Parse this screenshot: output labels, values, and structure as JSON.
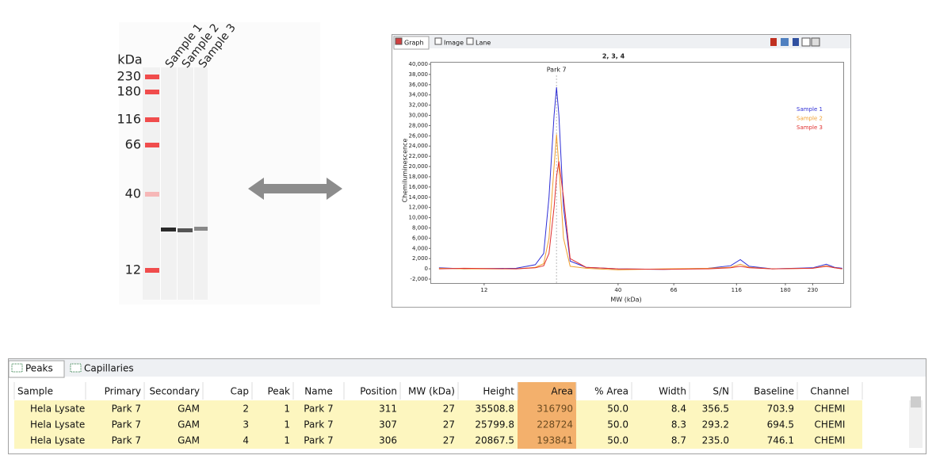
{
  "gel": {
    "unit": "kDa",
    "markers": [
      "230",
      "180",
      "116",
      "66",
      "40",
      "12"
    ],
    "samples": [
      "Sample 1",
      "Sample 2",
      "Sample 3"
    ]
  },
  "graph_window": {
    "tabs": [
      "Graph",
      "Image",
      "Lane"
    ]
  },
  "chart_data": {
    "type": "line",
    "title": "2, 3, 4",
    "x_label": "MW (kDa)",
    "y_label": "Chemiluminescence",
    "annotation": {
      "text": "Park 7",
      "x": 23
    },
    "xscale": "log",
    "xlim": [
      7.4,
      305
    ],
    "xticks": [
      12,
      40,
      66,
      116,
      180,
      230
    ],
    "ylim": [
      -2000,
      40000
    ],
    "yticks": [
      {
        "value": -2000,
        "label": "-2,000"
      },
      0,
      {
        "value": 2000,
        "label": "2,000"
      },
      {
        "value": 4000,
        "label": "4,000"
      },
      {
        "value": 6000,
        "label": "6,000"
      },
      {
        "value": 8000,
        "label": "8,000"
      },
      {
        "value": 10000,
        "label": "10,000"
      },
      {
        "value": 12000,
        "label": "12,000"
      },
      {
        "value": 14000,
        "label": "14,000"
      },
      {
        "value": 16000,
        "label": "16,000"
      },
      {
        "value": 18000,
        "label": "18,000"
      },
      {
        "value": 20000,
        "label": "20,000"
      },
      {
        "value": 22000,
        "label": "22,000"
      },
      {
        "value": 24000,
        "label": "24,000"
      },
      {
        "value": 26000,
        "label": "26,000"
      },
      {
        "value": 28000,
        "label": "28,000"
      },
      {
        "value": 30000,
        "label": "30,000"
      },
      {
        "value": 32000,
        "label": "32,000"
      },
      {
        "value": 34000,
        "label": "34,000"
      },
      {
        "value": 36000,
        "label": "36,000"
      },
      {
        "value": 38000,
        "label": "38,000"
      },
      {
        "value": 40000,
        "label": "40,000"
      }
    ],
    "x": [
      8,
      10,
      16,
      19,
      20.5,
      21.5,
      22.5,
      23,
      23.5,
      24.5,
      26,
      30,
      40,
      60,
      90,
      110,
      120,
      130,
      160,
      230,
      260,
      280,
      300
    ],
    "series": [
      {
        "name": "Sample 1",
        "color": "#2f2fd6",
        "values": [
          200,
          0,
          100,
          800,
          3000,
          14000,
          30000,
          35500,
          30000,
          12000,
          1500,
          300,
          0,
          -100,
          100,
          600,
          1800,
          500,
          0,
          200,
          900,
          300,
          100
        ]
      },
      {
        "name": "Sample 2",
        "color": "#f0a030",
        "values": [
          100,
          0,
          0,
          300,
          1000,
          6000,
          20000,
          26300,
          20000,
          6000,
          500,
          100,
          -200,
          0,
          100,
          300,
          900,
          300,
          0,
          100,
          600,
          200,
          0
        ]
      },
      {
        "name": "Sample 3",
        "color": "#e03030",
        "values": [
          0,
          100,
          0,
          200,
          600,
          3000,
          12000,
          18000,
          21000,
          14000,
          2000,
          300,
          0,
          -100,
          0,
          200,
          500,
          200,
          0,
          100,
          500,
          200,
          0
        ]
      }
    ]
  },
  "table": {
    "tabs": [
      "Peaks",
      "Capillaries"
    ],
    "columns": [
      "Sample",
      "Primary",
      "Secondary",
      "Cap",
      "Peak",
      "Name",
      "Position",
      "MW (kDa)",
      "Height",
      "Area",
      "% Area",
      "Width",
      "S/N",
      "Baseline",
      "Channel"
    ],
    "rows": [
      [
        "Hela Lysate",
        "Park 7",
        "GAM",
        "2",
        "1",
        "Park 7",
        "311",
        "27",
        "35508.8",
        "316790",
        "50.0",
        "8.4",
        "356.5",
        "703.9",
        "CHEMI"
      ],
      [
        "Hela Lysate",
        "Park 7",
        "GAM",
        "3",
        "1",
        "Park 7",
        "307",
        "27",
        "25799.8",
        "228724",
        "50.0",
        "8.3",
        "293.2",
        "694.5",
        "CHEMI"
      ],
      [
        "Hela Lysate",
        "Park 7",
        "GAM",
        "4",
        "1",
        "Park 7",
        "306",
        "27",
        "20867.5",
        "193841",
        "50.0",
        "8.7",
        "235.0",
        "746.1",
        "CHEMI"
      ]
    ]
  }
}
